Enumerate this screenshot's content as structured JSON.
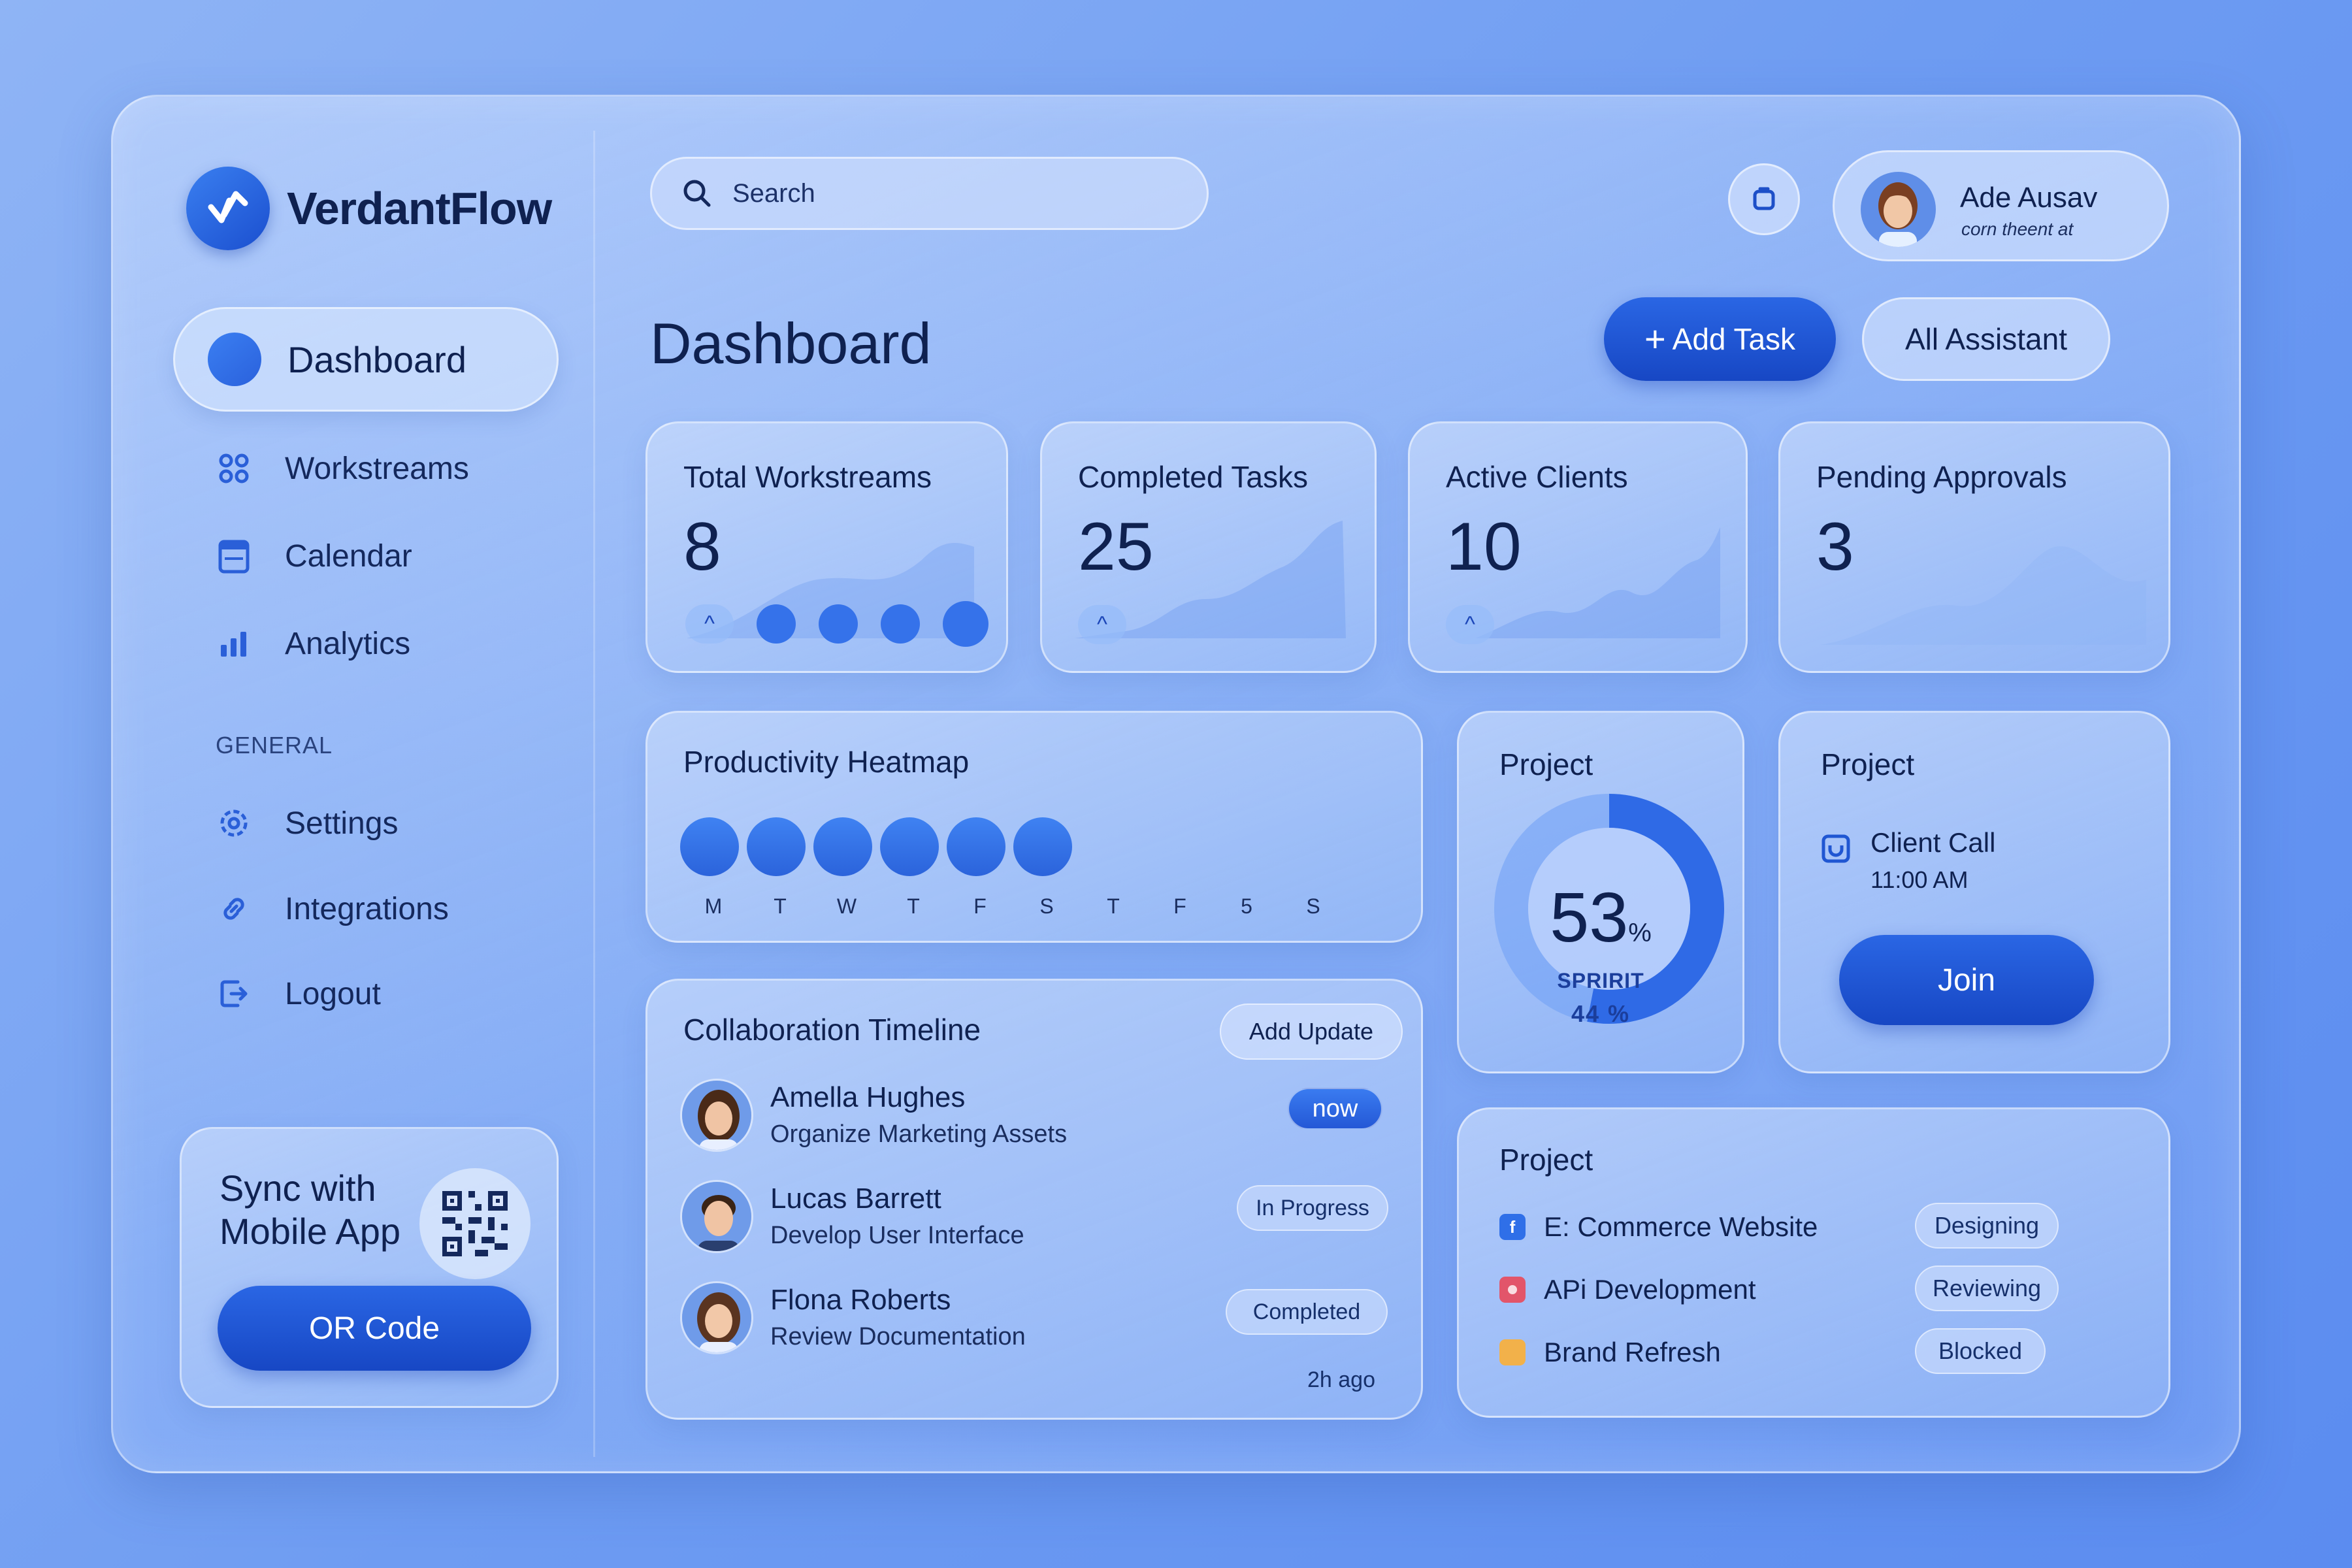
{
  "brand": {
    "name": "VerdantFlow"
  },
  "sidebar": {
    "items": [
      {
        "label": "Dashboard"
      },
      {
        "label": "Workstreams"
      },
      {
        "label": "Calendar"
      },
      {
        "label": "Analytics"
      }
    ],
    "section": "GENERAL",
    "general_items": [
      {
        "label": "Settings"
      },
      {
        "label": "Integrations"
      },
      {
        "label": "Logout"
      }
    ],
    "sync": {
      "title": "Sync with Mobile App",
      "button": "OR Code"
    }
  },
  "header": {
    "search_placeholder": "Search",
    "user": {
      "name": "Ade Ausav",
      "subtitle": "corn theent at"
    }
  },
  "main": {
    "title": "Dashboard",
    "add_task_label": "Add Task",
    "assistant_label": "All Assistant",
    "stats": [
      {
        "label": "Total Workstreams",
        "value": "8"
      },
      {
        "label": "Completed Tasks",
        "value": "25"
      },
      {
        "label": "Active Clients",
        "value": "10"
      },
      {
        "label": "Pending Approvals",
        "value": "3"
      }
    ],
    "heatmap": {
      "title": "Productivity Heatmap",
      "days": [
        "M",
        "T",
        "W",
        "T",
        "F",
        "S",
        "T",
        "F",
        "5",
        "S"
      ]
    },
    "timeline": {
      "title": "Collaboration Timeline",
      "add_update": "Add Update",
      "items": [
        {
          "name": "Amella Hughes",
          "task": "Organize Marketing Assets",
          "status": "now"
        },
        {
          "name": "Lucas Barrett",
          "task": "Develop User Interface",
          "status": "In Progress"
        },
        {
          "name": "Flona Roberts",
          "task": "Review Documentation",
          "status": "Completed"
        }
      ],
      "time_ago": "2h ago"
    },
    "project_progress": {
      "title": "Project",
      "percent": "53",
      "percent_sign": "%",
      "sub_label": "SPRIRIT",
      "sub_value": "44 %"
    },
    "project_call": {
      "title": "Project",
      "event": "Client Call",
      "time": "11:00 AM",
      "button": "Join"
    },
    "project_list": {
      "title": "Project",
      "items": [
        {
          "name": "E: Commerce Website",
          "status": "Designing",
          "color": "#2f6fe8",
          "icon": "f"
        },
        {
          "name": "APi Development",
          "status": "Reviewing",
          "color": "#e2556a",
          "icon": ""
        },
        {
          "name": "Brand Refresh",
          "status": "Blocked",
          "color": "#f2b14a",
          "icon": ""
        }
      ]
    }
  },
  "colors": {
    "accent": "#1f56d2",
    "accent_light": "#3b7ff2",
    "text": "#0f2150"
  }
}
